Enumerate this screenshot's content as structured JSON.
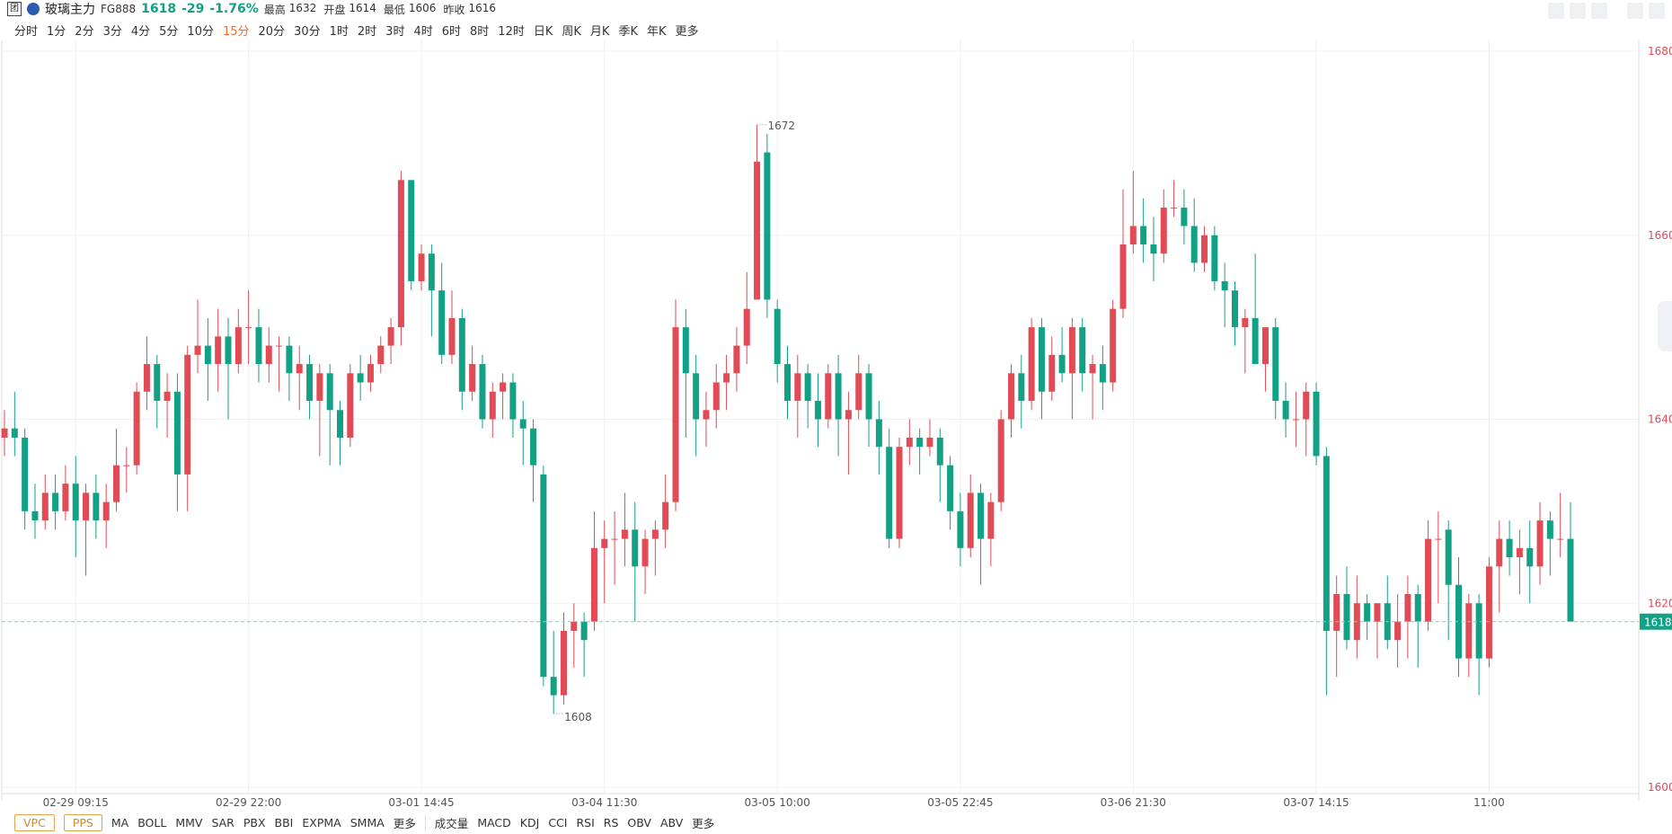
{
  "header": {
    "icon": "团",
    "name": "玻璃主力",
    "code": "FG888",
    "change": "-29",
    "change_pct": "-1.76%",
    "stats": [
      {
        "label": "最高",
        "value": "1632"
      },
      {
        "label": "开盘",
        "value": "1614"
      },
      {
        "label": "最低",
        "value": "1606"
      },
      {
        "label": "昨收",
        "value": "1616"
      }
    ]
  },
  "periods": [
    "分时",
    "1分",
    "2分",
    "3分",
    "4分",
    "5分",
    "10分",
    "15分",
    "20分",
    "30分",
    "1时",
    "2时",
    "3时",
    "4时",
    "6时",
    "8时",
    "12时",
    "日K",
    "周K",
    "月K",
    "季K",
    "年K",
    "更多"
  ],
  "active_period": "15分",
  "toolbar": {
    "boxed": [
      "VPC",
      "PPS"
    ],
    "main": [
      "MA",
      "BOLL",
      "MMV",
      "SAR",
      "PBX",
      "BBI",
      "EXPMA",
      "SMMA",
      "更多"
    ],
    "sub": [
      "成交量",
      "MACD",
      "KDJ",
      "CCI",
      "RSI",
      "RS",
      "OBV",
      "ABV",
      "更多"
    ]
  },
  "chart_data": {
    "type": "candlestick",
    "up_color": "#e04b56",
    "down_color": "#13a186",
    "grid": true,
    "ylim": [
      1600,
      1680
    ],
    "yticks": [
      1600,
      1620,
      1640,
      1660,
      1680
    ],
    "last_price": 1618,
    "categories": [
      null,
      null,
      null,
      null,
      null,
      null,
      null,
      "02-29 09:15",
      null,
      null,
      null,
      null,
      null,
      null,
      null,
      null,
      null,
      null,
      null,
      null,
      null,
      null,
      null,
      null,
      "02-29 22:00",
      null,
      null,
      null,
      null,
      null,
      null,
      null,
      null,
      null,
      null,
      null,
      null,
      null,
      null,
      null,
      null,
      "03-01 14:45",
      null,
      null,
      null,
      null,
      null,
      null,
      null,
      null,
      null,
      null,
      null,
      null,
      null,
      null,
      null,
      null,
      null,
      "03-04 11:30",
      null,
      null,
      null,
      null,
      null,
      null,
      null,
      null,
      null,
      null,
      null,
      null,
      null,
      null,
      null,
      null,
      "03-05 10:00",
      null,
      null,
      null,
      null,
      null,
      null,
      null,
      null,
      null,
      null,
      null,
      null,
      null,
      null,
      null,
      null,
      null,
      "03-05 22:45",
      null,
      null,
      null,
      null,
      null,
      null,
      null,
      null,
      null,
      null,
      null,
      null,
      null,
      null,
      null,
      null,
      "03-06 21:30",
      null,
      null,
      null,
      null,
      null,
      null,
      null,
      null,
      null,
      null,
      null,
      null,
      null,
      null,
      null,
      null,
      null,
      "03-07 14:15",
      null,
      null,
      null,
      null,
      null,
      null,
      null,
      null,
      null,
      null,
      null,
      null,
      null,
      null,
      null,
      null,
      "11:00",
      null,
      null,
      null,
      null,
      null,
      null,
      null,
      null
    ],
    "candles": [
      [
        1638,
        1641,
        1636,
        1639
      ],
      [
        1639,
        1643,
        1636,
        1638
      ],
      [
        1638,
        1639,
        1628,
        1630
      ],
      [
        1630,
        1633,
        1627,
        1629
      ],
      [
        1629,
        1634,
        1628,
        1632
      ],
      [
        1632,
        1634,
        1628,
        1630
      ],
      [
        1630,
        1635,
        1629,
        1633
      ],
      [
        1633,
        1636,
        1625,
        1629
      ],
      [
        1629,
        1633,
        1623,
        1632
      ],
      [
        1632,
        1634,
        1627,
        1629
      ],
      [
        1629,
        1633,
        1626,
        1631
      ],
      [
        1631,
        1639,
        1630,
        1635
      ],
      [
        1635,
        1637,
        1632,
        1635
      ],
      [
        1635,
        1644,
        1634,
        1643
      ],
      [
        1643,
        1649,
        1641,
        1646
      ],
      [
        1646,
        1647,
        1639,
        1642
      ],
      [
        1642,
        1645,
        1638,
        1643
      ],
      [
        1643,
        1645,
        1630,
        1634
      ],
      [
        1634,
        1648,
        1630,
        1647
      ],
      [
        1647,
        1653,
        1645,
        1648
      ],
      [
        1648,
        1651,
        1642,
        1646
      ],
      [
        1646,
        1652,
        1643,
        1649
      ],
      [
        1649,
        1651,
        1640,
        1646
      ],
      [
        1646,
        1652,
        1645,
        1650
      ],
      [
        1650,
        1654,
        1646,
        1650
      ],
      [
        1650,
        1652,
        1644,
        1646
      ],
      [
        1646,
        1650,
        1644,
        1648
      ],
      [
        1648,
        1649,
        1643,
        1648
      ],
      [
        1648,
        1649,
        1642,
        1645
      ],
      [
        1645,
        1648,
        1641,
        1646
      ],
      [
        1646,
        1647,
        1640,
        1642
      ],
      [
        1642,
        1646,
        1636,
        1645
      ],
      [
        1645,
        1646,
        1635,
        1641
      ],
      [
        1641,
        1642,
        1635,
        1638
      ],
      [
        1638,
        1646,
        1637,
        1645
      ],
      [
        1645,
        1647,
        1642,
        1644
      ],
      [
        1644,
        1647,
        1643,
        1646
      ],
      [
        1646,
        1649,
        1645,
        1648
      ],
      [
        1648,
        1651,
        1646,
        1650
      ],
      [
        1650,
        1667,
        1648,
        1666
      ],
      [
        1666,
        1666,
        1654,
        1655
      ],
      [
        1655,
        1659,
        1654,
        1658
      ],
      [
        1658,
        1659,
        1649,
        1654
      ],
      [
        1654,
        1657,
        1646,
        1647
      ],
      [
        1647,
        1654,
        1646,
        1651
      ],
      [
        1651,
        1652,
        1641,
        1643
      ],
      [
        1643,
        1648,
        1642,
        1646
      ],
      [
        1646,
        1647,
        1639,
        1640
      ],
      [
        1640,
        1644,
        1638,
        1643
      ],
      [
        1643,
        1645,
        1640,
        1644
      ],
      [
        1644,
        1645,
        1638,
        1640
      ],
      [
        1640,
        1642,
        1635,
        1639
      ],
      [
        1639,
        1640,
        1631,
        1635
      ],
      [
        1634,
        1635,
        1611,
        1612
      ],
      [
        1612,
        1617,
        1608,
        1610
      ],
      [
        1610,
        1619,
        1609,
        1617
      ],
      [
        1617,
        1620,
        1613,
        1618
      ],
      [
        1618,
        1619,
        1612,
        1616
      ],
      [
        1618,
        1630,
        1617,
        1626
      ],
      [
        1626,
        1629,
        1620,
        1627
      ],
      [
        1627,
        1630,
        1622,
        1627
      ],
      [
        1627,
        1632,
        1624,
        1628
      ],
      [
        1628,
        1631,
        1618,
        1624
      ],
      [
        1624,
        1628,
        1621,
        1627
      ],
      [
        1627,
        1629,
        1623,
        1628
      ],
      [
        1628,
        1634,
        1626,
        1631
      ],
      [
        1631,
        1653,
        1630,
        1650
      ],
      [
        1650,
        1652,
        1638,
        1645
      ],
      [
        1645,
        1647,
        1636,
        1640
      ],
      [
        1640,
        1643,
        1637,
        1641
      ],
      [
        1641,
        1646,
        1639,
        1644
      ],
      [
        1644,
        1647,
        1641,
        1645
      ],
      [
        1645,
        1650,
        1643,
        1648
      ],
      [
        1648,
        1656,
        1646,
        1652
      ],
      [
        1653,
        1672,
        1653,
        1668
      ],
      [
        1669,
        1671,
        1651,
        1653
      ],
      [
        1652,
        1653,
        1644,
        1646
      ],
      [
        1646,
        1648,
        1640,
        1642
      ],
      [
        1642,
        1647,
        1638,
        1645
      ],
      [
        1645,
        1646,
        1639,
        1642
      ],
      [
        1642,
        1645,
        1637,
        1640
      ],
      [
        1640,
        1646,
        1639,
        1645
      ],
      [
        1645,
        1647,
        1636,
        1640
      ],
      [
        1640,
        1643,
        1634,
        1641
      ],
      [
        1641,
        1647,
        1640,
        1645
      ],
      [
        1645,
        1646,
        1637,
        1640
      ],
      [
        1640,
        1642,
        1634,
        1637
      ],
      [
        1637,
        1639,
        1626,
        1627
      ],
      [
        1627,
        1638,
        1626,
        1637
      ],
      [
        1637,
        1640,
        1635,
        1638
      ],
      [
        1638,
        1639,
        1634,
        1637
      ],
      [
        1637,
        1640,
        1636,
        1638
      ],
      [
        1638,
        1639,
        1631,
        1635
      ],
      [
        1635,
        1636,
        1628,
        1630
      ],
      [
        1630,
        1632,
        1624,
        1626
      ],
      [
        1626,
        1634,
        1625,
        1632
      ],
      [
        1632,
        1633,
        1622,
        1627
      ],
      [
        1627,
        1632,
        1624,
        1631
      ],
      [
        1631,
        1641,
        1630,
        1640
      ],
      [
        1640,
        1646,
        1638,
        1645
      ],
      [
        1645,
        1647,
        1639,
        1642
      ],
      [
        1642,
        1651,
        1641,
        1650
      ],
      [
        1650,
        1651,
        1640,
        1643
      ],
      [
        1643,
        1649,
        1642,
        1647
      ],
      [
        1647,
        1650,
        1644,
        1645
      ],
      [
        1645,
        1651,
        1640,
        1650
      ],
      [
        1650,
        1651,
        1643,
        1645
      ],
      [
        1645,
        1647,
        1640,
        1646
      ],
      [
        1646,
        1648,
        1641,
        1644
      ],
      [
        1644,
        1653,
        1643,
        1652
      ],
      [
        1652,
        1665,
        1651,
        1659
      ],
      [
        1659,
        1667,
        1658,
        1661
      ],
      [
        1661,
        1664,
        1657,
        1659
      ],
      [
        1659,
        1662,
        1655,
        1658
      ],
      [
        1658,
        1665,
        1657,
        1663
      ],
      [
        1663,
        1666,
        1662,
        1663
      ],
      [
        1663,
        1665,
        1659,
        1661
      ],
      [
        1661,
        1664,
        1656,
        1657
      ],
      [
        1657,
        1661,
        1656,
        1660
      ],
      [
        1660,
        1661,
        1654,
        1655
      ],
      [
        1655,
        1657,
        1650,
        1654
      ],
      [
        1654,
        1655,
        1648,
        1650
      ],
      [
        1650,
        1652,
        1645,
        1651
      ],
      [
        1651,
        1658,
        1646,
        1646
      ],
      [
        1646,
        1650,
        1643,
        1650
      ],
      [
        1650,
        1651,
        1640,
        1642
      ],
      [
        1642,
        1644,
        1638,
        1640
      ],
      [
        1640,
        1643,
        1637,
        1640
      ],
      [
        1640,
        1644,
        1636,
        1643
      ],
      [
        1643,
        1644,
        1635,
        1636
      ],
      [
        1636,
        1637,
        1610,
        1617
      ],
      [
        1617,
        1623,
        1612,
        1621
      ],
      [
        1621,
        1624,
        1615,
        1616
      ],
      [
        1616,
        1623,
        1614,
        1620
      ],
      [
        1620,
        1621,
        1616,
        1618
      ],
      [
        1618,
        1620,
        1614,
        1620
      ],
      [
        1620,
        1623,
        1615,
        1616
      ],
      [
        1616,
        1621,
        1613,
        1618
      ],
      [
        1618,
        1623,
        1614,
        1621
      ],
      [
        1621,
        1622,
        1613,
        1618
      ],
      [
        1618,
        1629,
        1617,
        1627
      ],
      [
        1627,
        1630,
        1620,
        1627
      ],
      [
        1628,
        1629,
        1616,
        1622
      ],
      [
        1622,
        1625,
        1612,
        1614
      ],
      [
        1614,
        1621,
        1612,
        1620
      ],
      [
        1620,
        1621,
        1610,
        1614
      ],
      [
        1614,
        1625,
        1613,
        1624
      ],
      [
        1624,
        1629,
        1619,
        1627
      ],
      [
        1627,
        1629,
        1623,
        1625
      ],
      [
        1625,
        1628,
        1621,
        1626
      ],
      [
        1626,
        1629,
        1620,
        1624
      ],
      [
        1624,
        1631,
        1622,
        1629
      ],
      [
        1629,
        1630,
        1623,
        1627
      ],
      [
        1627,
        1632,
        1625,
        1627
      ],
      [
        1627,
        1631,
        1618,
        1618
      ]
    ]
  }
}
